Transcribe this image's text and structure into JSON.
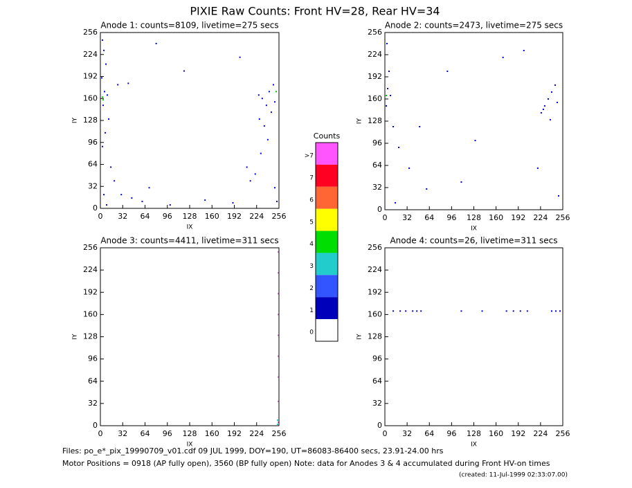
{
  "title": "PIXIE Raw Counts:  Front HV=28, Rear HV=34",
  "chart_data": [
    {
      "type": "scatter",
      "title": "Anode 1: counts=8109, livetime=275 secs",
      "xlabel": "IX",
      "ylabel": "IY",
      "xlim": [
        0,
        256
      ],
      "ylim": [
        0,
        256
      ],
      "xticks": [
        0,
        32,
        64,
        96,
        128,
        160,
        192,
        224,
        256
      ],
      "yticks": [
        0,
        32,
        64,
        96,
        128,
        160,
        192,
        224,
        256
      ],
      "series": [
        {
          "color": "#0000cc",
          "x": [
            3,
            5,
            8,
            2,
            6,
            10,
            4,
            12,
            7,
            3,
            15,
            20,
            30,
            45,
            60,
            70,
            25,
            40,
            227,
            232,
            238,
            245,
            250,
            228,
            235,
            242,
            248,
            240,
            230,
            222,
            250,
            253,
            100,
            150,
            190,
            210,
            80,
            120,
            200,
            215,
            5,
            9
          ],
          "y": [
            245,
            230,
            210,
            190,
            170,
            165,
            150,
            130,
            110,
            90,
            60,
            40,
            20,
            15,
            10,
            30,
            180,
            182,
            165,
            160,
            150,
            140,
            155,
            130,
            120,
            170,
            180,
            100,
            80,
            50,
            30,
            10,
            5,
            12,
            8,
            60,
            240,
            200,
            220,
            40,
            20,
            5
          ]
        },
        {
          "color": "#00cc00",
          "x": [
            3,
            4,
            252
          ],
          "y": [
            162,
            158,
            170
          ]
        }
      ]
    },
    {
      "type": "scatter",
      "title": "Anode 2: counts=2473, livetime=275 secs",
      "xlabel": "IX",
      "ylabel": "IY",
      "xlim": [
        0,
        256
      ],
      "ylim": [
        0,
        256
      ],
      "xticks": [
        0,
        32,
        64,
        96,
        128,
        160,
        192,
        224,
        256
      ],
      "yticks": [
        0,
        32,
        64,
        96,
        128,
        160,
        192,
        224,
        256
      ],
      "series": [
        {
          "color": "#0000cc",
          "x": [
            3,
            6,
            4,
            8,
            2,
            12,
            20,
            35,
            60,
            90,
            130,
            170,
            225,
            230,
            235,
            240,
            245,
            248,
            238,
            228,
            250,
            220,
            200,
            110,
            50,
            15
          ],
          "y": [
            240,
            200,
            175,
            165,
            150,
            120,
            90,
            60,
            30,
            200,
            100,
            220,
            140,
            150,
            160,
            170,
            180,
            155,
            130,
            145,
            20,
            60,
            230,
            40,
            120,
            10
          ]
        },
        {
          "color": "#00cc00",
          "x": [
            2
          ],
          "y": [
            165
          ]
        }
      ]
    },
    {
      "type": "scatter",
      "title": "Anode 3: counts=4411, livetime=311 secs",
      "xlabel": "IX",
      "ylabel": "IY",
      "xlim": [
        0,
        256
      ],
      "ylim": [
        0,
        256
      ],
      "xticks": [
        0,
        32,
        64,
        96,
        128,
        160,
        192,
        224,
        256
      ],
      "yticks": [
        0,
        32,
        64,
        96,
        128,
        160,
        192,
        224,
        256
      ],
      "series": [
        {
          "color": "#ff55ff",
          "x": [
            255,
            255,
            255,
            255,
            255,
            255,
            255,
            255,
            255
          ],
          "y": [
            5,
            35,
            70,
            100,
            130,
            160,
            190,
            220,
            250
          ]
        },
        {
          "color": "#22cccc",
          "x": [
            254,
            254
          ],
          "y": [
            2,
            8
          ]
        }
      ]
    },
    {
      "type": "scatter",
      "title": "Anode 4: counts=26, livetime=311 secs",
      "xlabel": "IX",
      "ylabel": "IY",
      "xlim": [
        0,
        256
      ],
      "ylim": [
        0,
        256
      ],
      "xticks": [
        0,
        32,
        64,
        96,
        128,
        160,
        192,
        224,
        256
      ],
      "yticks": [
        0,
        32,
        64,
        96,
        128,
        160,
        192,
        224,
        256
      ],
      "series": [
        {
          "color": "#0000cc",
          "x": [
            12,
            22,
            30,
            40,
            46,
            52,
            110,
            140,
            175,
            185,
            195,
            205,
            240,
            246,
            252
          ],
          "y": [
            165,
            165,
            165,
            165,
            165,
            165,
            165,
            165,
            165,
            165,
            165,
            165,
            165,
            165,
            165
          ]
        }
      ]
    }
  ],
  "colorbar": {
    "title": "Counts",
    "levels": [
      {
        "label": ">7",
        "color": "#ff55ff"
      },
      {
        "label": "7",
        "color": "#ff0022"
      },
      {
        "label": "6",
        "color": "#ff6633"
      },
      {
        "label": "5",
        "color": "#ffff00"
      },
      {
        "label": "4",
        "color": "#00dd00"
      },
      {
        "label": "3",
        "color": "#22cccc"
      },
      {
        "label": "2",
        "color": "#3355ff"
      },
      {
        "label": "1",
        "color": "#0000bb"
      },
      {
        "label": "0",
        "color": "#ffffff"
      }
    ]
  },
  "footer": {
    "files": "Files: po_e*_pix_19990709_v01.cdf    09 JUL 1999, DOY=190, UT=86083-86400 secs, 23.91-24.00 hrs",
    "motor": "Motor Positions = 0918 (AP fully open), 3560 (BP fully open)    Note: data for Anodes 3 & 4 accumulated during Front HV-on times",
    "created": "(created: 11-Jul-1999 02:33:07.00)"
  }
}
